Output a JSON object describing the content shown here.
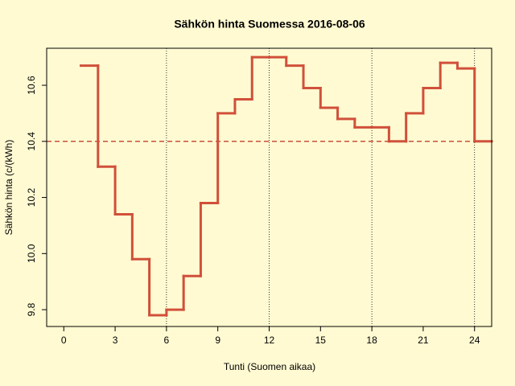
{
  "chart_data": {
    "type": "step",
    "title": "Sähkön hinta Suomessa 2016-08-06",
    "x_label": "Tunti (Suomen aikaa)",
    "y_label": "Sähkön hinta (c/(kWh)",
    "x": [
      1,
      2,
      3,
      4,
      5,
      6,
      7,
      8,
      9,
      10,
      11,
      12,
      13,
      14,
      15,
      16,
      17,
      18,
      19,
      20,
      21,
      22,
      23,
      24
    ],
    "values": [
      10.67,
      10.31,
      10.14,
      9.98,
      9.78,
      9.8,
      9.92,
      10.18,
      10.5,
      10.55,
      10.7,
      10.7,
      10.67,
      10.59,
      10.52,
      10.48,
      10.45,
      10.45,
      10.4,
      10.5,
      10.59,
      10.68,
      10.66,
      10.4
    ],
    "color": "#d0503a",
    "xlim": [
      -1,
      25
    ],
    "ylim": [
      9.74,
      10.732
    ],
    "xticks": [
      0,
      3,
      6,
      9,
      12,
      15,
      18,
      21,
      24
    ],
    "yticks": [
      9.8,
      {
        "value": 10,
        "label": "10.0"
      },
      10.2,
      10.4,
      10.6
    ],
    "hline": 10.4,
    "hline_color": "#c8503c",
    "vlines": [
      6,
      12,
      18,
      24
    ]
  }
}
